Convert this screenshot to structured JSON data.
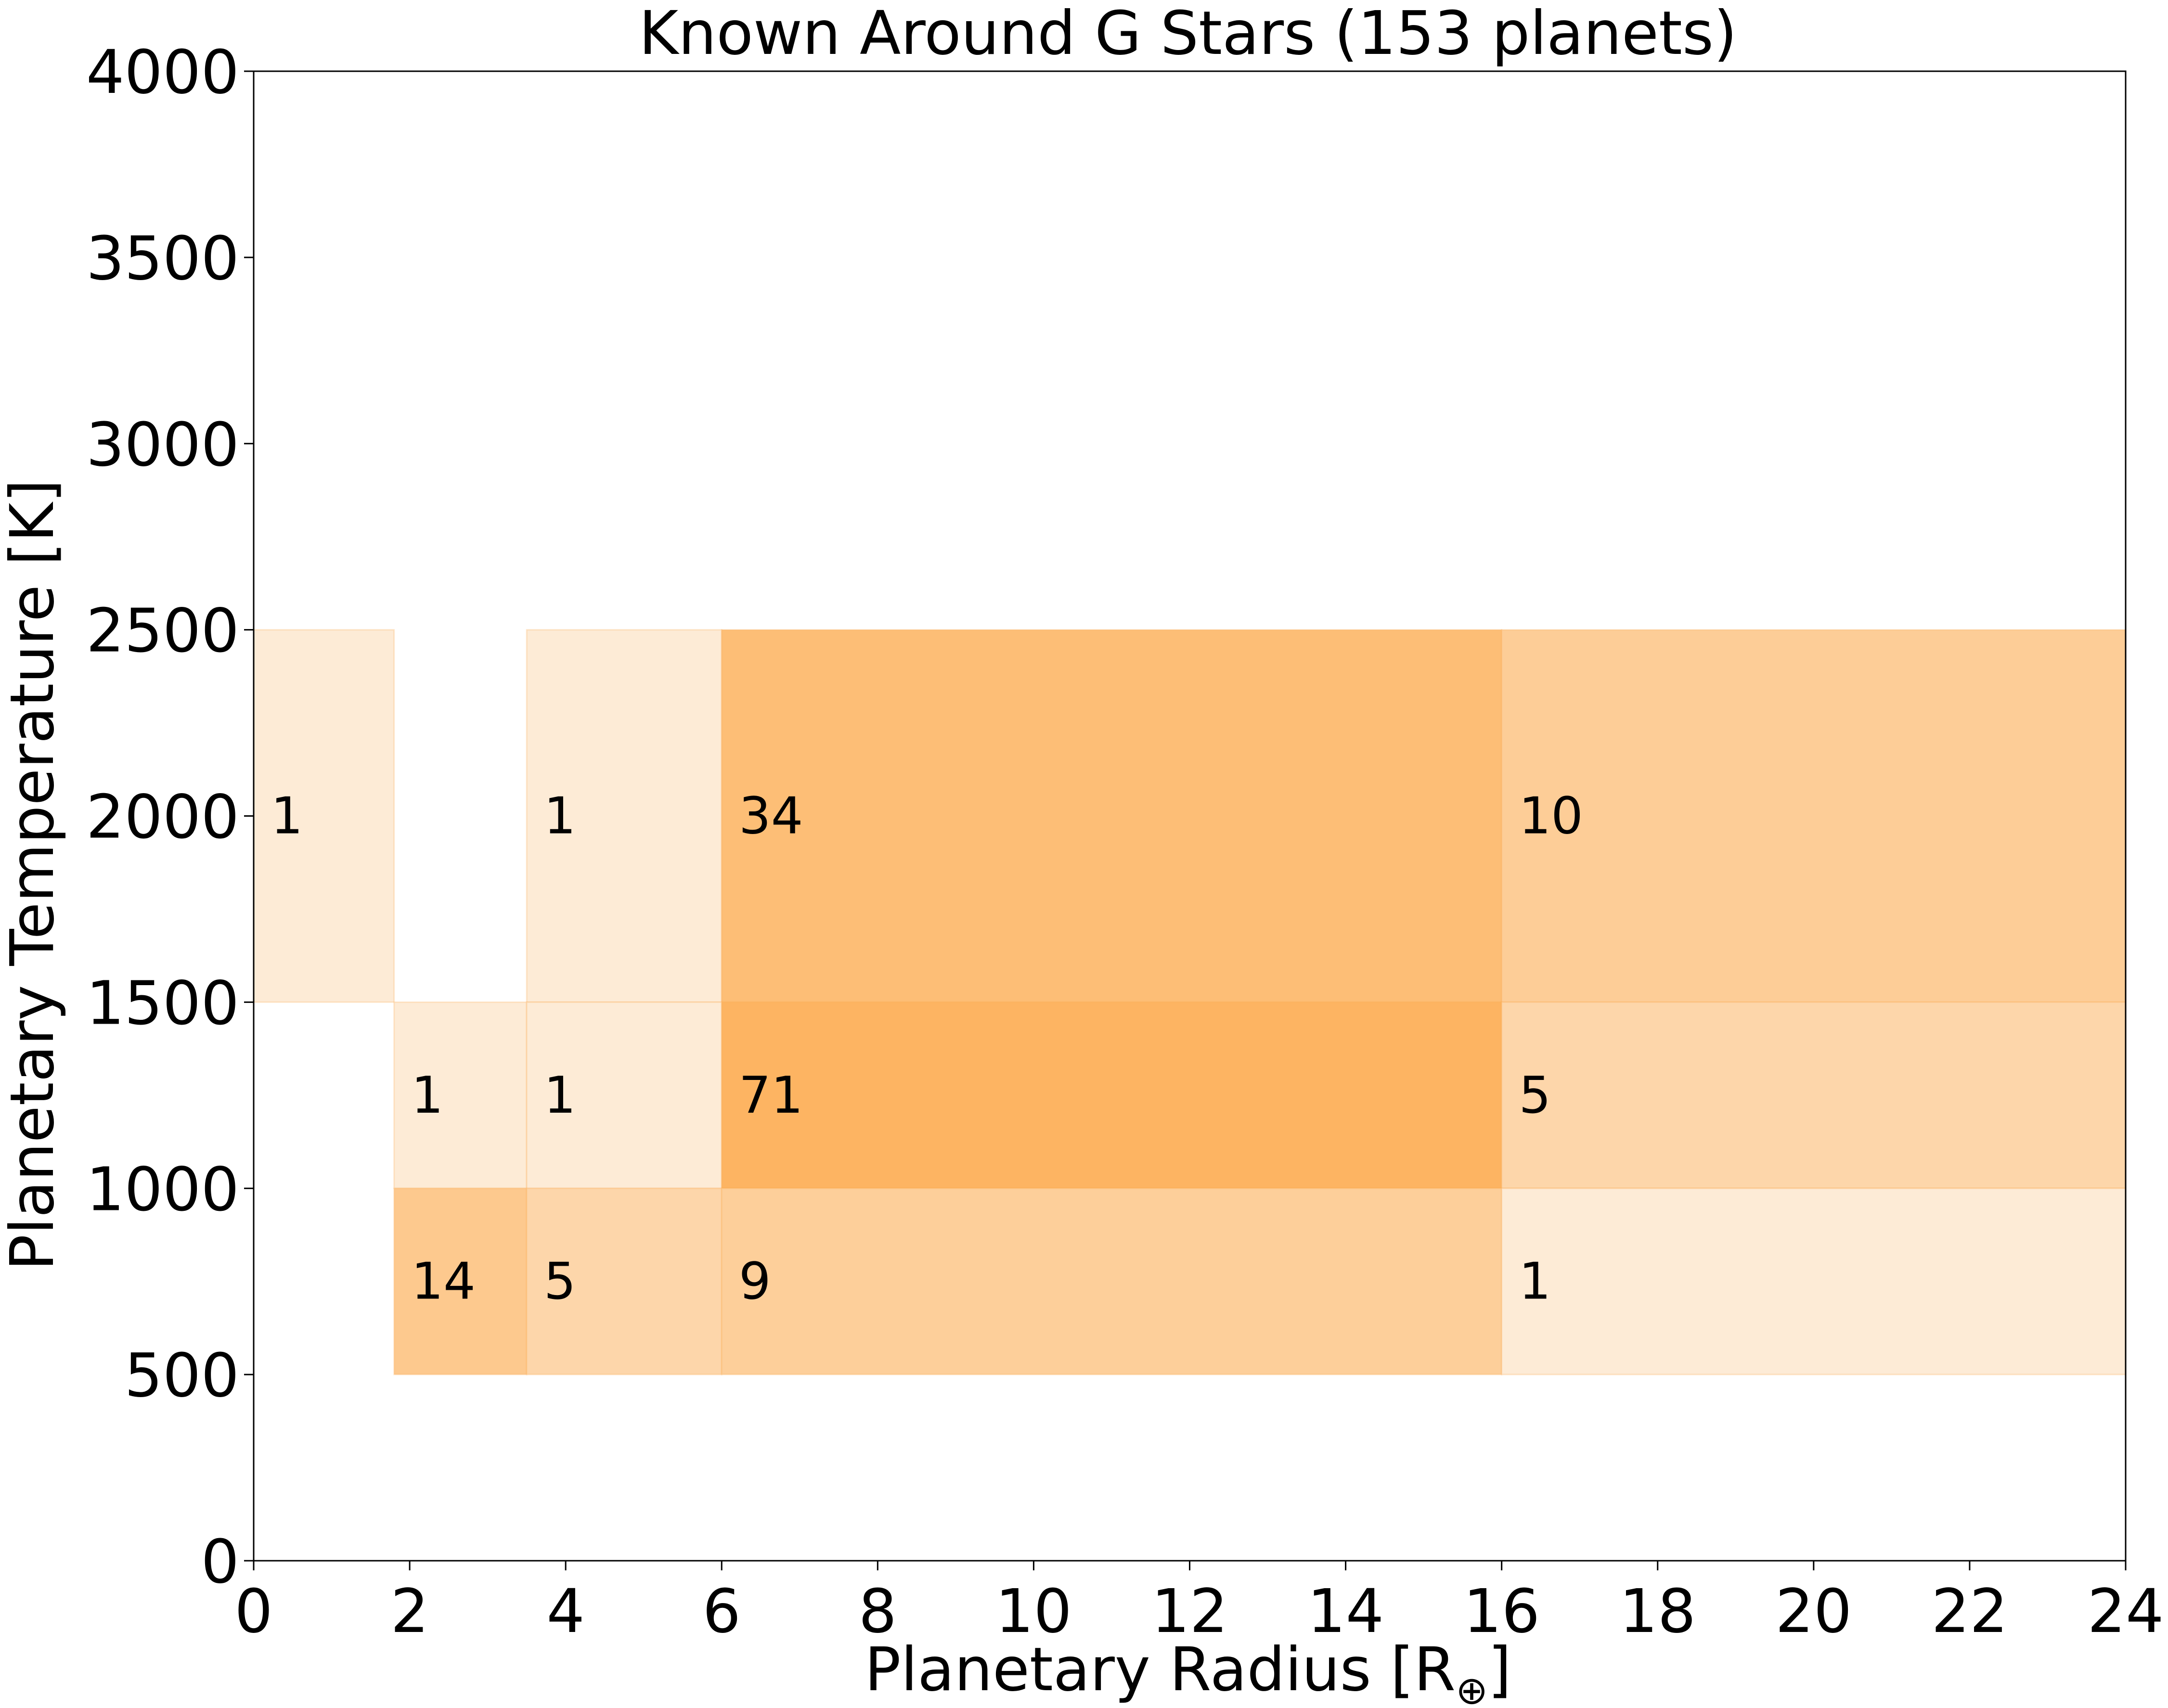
{
  "chart_data": {
    "type": "heatmap",
    "title": "Known Around G Stars (153 planets)",
    "xlabel": "Planetary Radius [R",
    "xlabel_subscript": "⊕",
    "xlabel_suffix": "]",
    "ylabel": "Planetary Temperature [K]",
    "xlim": [
      0,
      24
    ],
    "ylim": [
      0,
      4000
    ],
    "xticks": [
      0,
      2,
      4,
      6,
      8,
      10,
      12,
      14,
      16,
      18,
      20,
      22,
      24
    ],
    "yticks": [
      0,
      500,
      1000,
      1500,
      2000,
      2500,
      3000,
      3500,
      4000
    ],
    "grid": false,
    "colormap": {
      "low": "#fdebd6",
      "high": "#fdb462",
      "edge": "#fba94a"
    },
    "cells": [
      {
        "x0": 0.0,
        "x1": 1.8,
        "y0": 1500,
        "y1": 2500,
        "count": 1
      },
      {
        "x0": 3.5,
        "x1": 6.0,
        "y0": 1500,
        "y1": 2500,
        "count": 1
      },
      {
        "x0": 6.0,
        "x1": 16.0,
        "y0": 1500,
        "y1": 2500,
        "count": 34
      },
      {
        "x0": 16.0,
        "x1": 24.0,
        "y0": 1500,
        "y1": 2500,
        "count": 10
      },
      {
        "x0": 1.8,
        "x1": 3.5,
        "y0": 1000,
        "y1": 1500,
        "count": 1
      },
      {
        "x0": 3.5,
        "x1": 6.0,
        "y0": 1000,
        "y1": 1500,
        "count": 1
      },
      {
        "x0": 6.0,
        "x1": 16.0,
        "y0": 1000,
        "y1": 1500,
        "count": 71
      },
      {
        "x0": 16.0,
        "x1": 24.0,
        "y0": 1000,
        "y1": 1500,
        "count": 5
      },
      {
        "x0": 1.8,
        "x1": 3.5,
        "y0": 500,
        "y1": 1000,
        "count": 14
      },
      {
        "x0": 3.5,
        "x1": 6.0,
        "y0": 500,
        "y1": 1000,
        "count": 5
      },
      {
        "x0": 6.0,
        "x1": 16.0,
        "y0": 500,
        "y1": 1000,
        "count": 9
      },
      {
        "x0": 16.0,
        "x1": 24.0,
        "y0": 500,
        "y1": 1000,
        "count": 1
      }
    ]
  }
}
